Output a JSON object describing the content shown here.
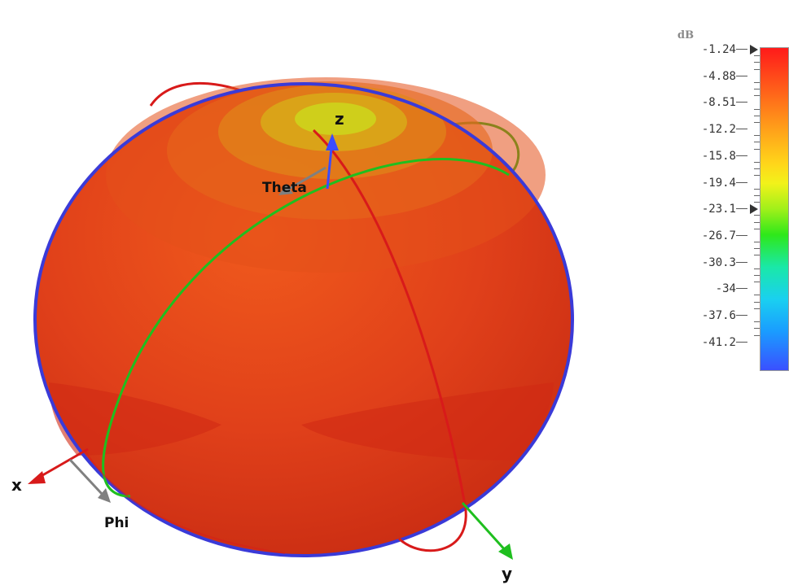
{
  "axes": {
    "x": "x",
    "y": "y",
    "z": "z"
  },
  "angles": {
    "theta": "Theta",
    "phi": "Phi"
  },
  "colorbar": {
    "unit": "dB",
    "ticks": [
      "-1.24",
      "-4.88",
      "-8.51",
      "-12.2",
      "-15.8",
      "-19.4",
      "-23.1",
      "-26.7",
      "-30.3",
      "-34",
      "-37.6",
      "-41.2"
    ],
    "markers": [
      "-1.24",
      "-23.1"
    ]
  },
  "colors": {
    "sphere": "#e53b12",
    "sphere_top": "#c8d21a",
    "outline": "#3a3ad8",
    "theta_circle": "#d81a1a",
    "phi_circle": "#1fbf1f",
    "x_axis": "#d81a1a",
    "y_axis": "#1fbf1f",
    "z_axis": "#3a4cff",
    "angle_arrow": "#808080"
  }
}
